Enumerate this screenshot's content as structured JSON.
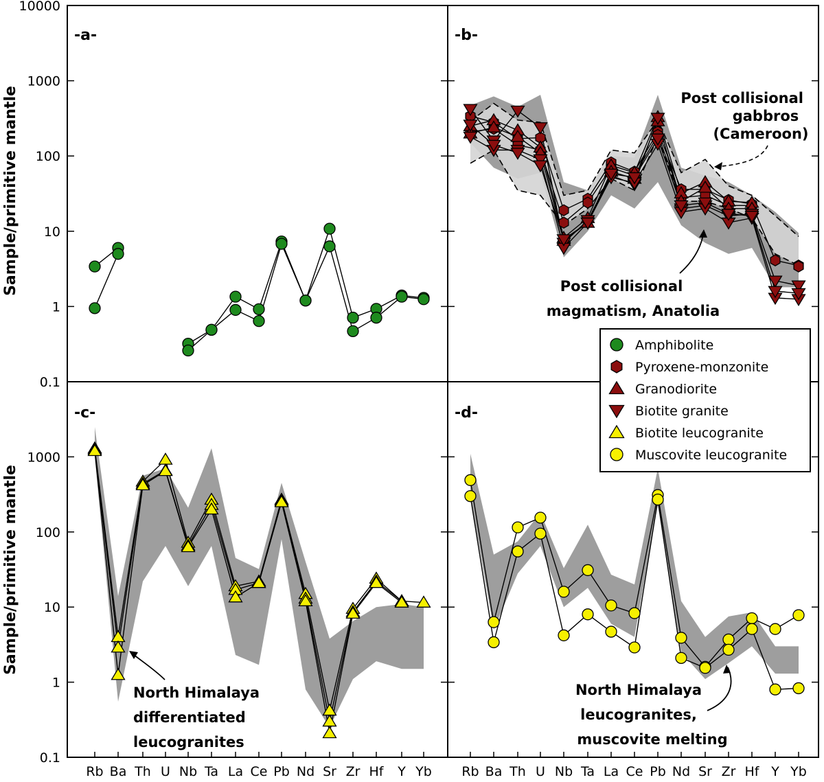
{
  "y_axis_label": "Sample/primitive mantle",
  "y_ticks": [
    "0.1",
    "1",
    "10",
    "100",
    "1000",
    "10000"
  ],
  "x_ticks_left": [
    "Rb",
    "Ba",
    "Th",
    "U",
    "Nb",
    "Ta",
    "La",
    "Ce",
    "Pb",
    "Nd",
    "Sr",
    "Zr",
    "Hf",
    "Y",
    "Yb"
  ],
  "x_ticks_right": [
    "Rb",
    "Ba",
    "Th",
    "U",
    "Nb",
    "Ta",
    "La",
    "Ce",
    "Pb",
    "Nd",
    "Sr",
    "Zr",
    "Hf",
    "Y",
    "Yb"
  ],
  "panels": {
    "a": {
      "label": "-a-"
    },
    "b": {
      "label": "-b-"
    },
    "c": {
      "label": "-c-"
    },
    "d": {
      "label": "-d-"
    }
  },
  "annotations": {
    "b_gabbros": [
      "Post collisional",
      "gabbros",
      "(Cameroon)"
    ],
    "b_anatolia": [
      "Post collisional",
      "magmatism, Anatolia"
    ],
    "c_himalaya": [
      "North Himalaya",
      "differentiated",
      "leucogranites"
    ],
    "d_himalaya": [
      "North Himalaya",
      "leucogranites,",
      "muscovite melting"
    ]
  },
  "legend": [
    {
      "label": "Amphibolite",
      "marker": "circle",
      "color": "#1e8a1e"
    },
    {
      "label": "Pyroxene-monzonite",
      "marker": "hexagon",
      "color": "#8b0e0e"
    },
    {
      "label": "Granodiorite",
      "marker": "triangle-up",
      "color": "#8b0e0e"
    },
    {
      "label": "Biotite granite",
      "marker": "triangle-down",
      "color": "#8b0e0e"
    },
    {
      "label": "Biotite leucogranite",
      "marker": "triangle-up",
      "color": "#f6f000"
    },
    {
      "label": "Muscovite leucogranite",
      "marker": "circle",
      "color": "#f6f000"
    }
  ],
  "chart_data": [
    {
      "type": "line",
      "panel": "a",
      "title": "-a-",
      "ylabel": "Sample/primitive mantle",
      "yscale": "log",
      "ylim": [
        0.1,
        10000
      ],
      "categories": [
        "Rb",
        "Ba",
        "Th",
        "U",
        "Nb",
        "Ta",
        "La",
        "Ce",
        "Pb",
        "Nd",
        "Sr",
        "Zr",
        "Hf",
        "Y",
        "Yb"
      ],
      "series": [
        {
          "name": "Amphibolite",
          "values": [
            3.4,
            6.0,
            null,
            null,
            0.32,
            0.49,
            1.35,
            0.92,
            7.3,
            1.2,
            10.8,
            0.71,
            0.93,
            1.4,
            1.3
          ]
        },
        {
          "name": "Amphibolite",
          "values": [
            0.95,
            5.0,
            null,
            null,
            0.26,
            0.49,
            0.9,
            0.64,
            6.8,
            1.2,
            6.3,
            0.47,
            0.71,
            1.35,
            1.25
          ]
        }
      ],
      "fill": []
    },
    {
      "type": "line",
      "panel": "b",
      "title": "-b-",
      "yscale": "log",
      "ylim": [
        0.1,
        10000
      ],
      "categories": [
        "Rb",
        "Ba",
        "Th",
        "U",
        "Nb",
        "Ta",
        "La",
        "Ce",
        "Pb",
        "Nd",
        "Sr",
        "Zr",
        "Hf",
        "Y",
        "Yb"
      ],
      "series": [
        {
          "name": "Pyroxene-monzonite",
          "values": [
            340,
            280,
            170,
            175,
            19,
            27,
            82,
            62,
            210,
            36,
            36,
            26,
            23,
            4.1,
            3.5
          ]
        },
        {
          "name": "Pyroxene-monzonite",
          "values": [
            210,
            230,
            140,
            120,
            13,
            24,
            70,
            55,
            190,
            28,
            30,
            22,
            22,
            null,
            3.4
          ]
        },
        {
          "name": "Granodiorite",
          "values": [
            250,
            300,
            220,
            130,
            8.2,
            15,
            75,
            60,
            330,
            32,
            45,
            25,
            24,
            null,
            null
          ]
        },
        {
          "name": "Granodiorite",
          "values": [
            200,
            240,
            180,
            110,
            7.5,
            13,
            62,
            50,
            290,
            25,
            38,
            20,
            20,
            null,
            null
          ]
        },
        {
          "name": "Biotite granite",
          "values": [
            420,
            160,
            400,
            240,
            7.0,
            14,
            55,
            42,
            320,
            20,
            22,
            16,
            17,
            2.2,
            1.9
          ]
        },
        {
          "name": "Biotite granite",
          "values": [
            180,
            120,
            120,
            90,
            6.0,
            13,
            52,
            44,
            145,
            18,
            20,
            13,
            15,
            1.3,
            1.25
          ]
        },
        {
          "name": "Biotite granite",
          "values": [
            260,
            140,
            110,
            75,
            7.8,
            13,
            58,
            52,
            170,
            22,
            24,
            17,
            16,
            1.6,
            1.5
          ]
        }
      ],
      "fill_ranges": [
        {
          "name": "Post collisional magmatism, Anatolia",
          "lower": [
            150,
            70,
            50,
            60,
            4.5,
            10,
            30,
            20,
            45,
            12,
            7,
            5,
            6,
            1.8,
            1.8
          ],
          "upper": [
            470,
            620,
            450,
            650,
            45,
            35,
            100,
            95,
            650,
            70,
            55,
            45,
            30,
            18,
            9.5
          ]
        },
        {
          "name": "Post collisional gabbros (Cameroon)",
          "lower": [
            80,
            120,
            35,
            30,
            12,
            20,
            50,
            35,
            180,
            25,
            25,
            20,
            15,
            5,
            3.5
          ],
          "upper": [
            290,
            500,
            300,
            280,
            30,
            35,
            120,
            110,
            300,
            60,
            90,
            40,
            30,
            16,
            8.5
          ]
        }
      ]
    },
    {
      "type": "line",
      "panel": "c",
      "title": "-c-",
      "ylabel": "Sample/primitive mantle",
      "yscale": "log",
      "ylim": [
        0.1,
        10000
      ],
      "categories": [
        "Rb",
        "Ba",
        "Th",
        "U",
        "Nb",
        "Ta",
        "La",
        "Ce",
        "Pb",
        "Nd",
        "Sr",
        "Zr",
        "Hf",
        "Y",
        "Yb"
      ],
      "series": [
        {
          "name": "Biotite leucogranite",
          "values": [
            1300,
            4.0,
            470,
            920,
            72,
            270,
            19,
            22,
            270,
            15,
            0.42,
            9.5,
            24,
            12,
            11.5
          ]
        },
        {
          "name": "Biotite leucogranite",
          "values": [
            1250,
            2.9,
            440,
            660,
            66,
            230,
            17,
            21,
            260,
            13,
            0.3,
            8.6,
            22,
            12,
            null
          ]
        },
        {
          "name": "Biotite leucogranite",
          "values": [
            1200,
            1.25,
            420,
            650,
            63,
            200,
            13.5,
            21,
            250,
            12,
            0.21,
            8.2,
            21,
            11.5,
            null
          ]
        }
      ],
      "fill_ranges": [
        {
          "name": "North Himalaya differentiated leucogranites",
          "lower": [
            1000,
            0.55,
            22,
            65,
            19,
            65,
            2.3,
            1.7,
            80,
            0.8,
            0.25,
            1.1,
            1.9,
            1.5,
            1.5
          ],
          "upper": [
            2500,
            14,
            560,
            700,
            210,
            1300,
            45,
            32,
            450,
            40,
            3.8,
            6.5,
            10,
            11,
            10
          ]
        }
      ]
    },
    {
      "type": "line",
      "panel": "d",
      "title": "-d-",
      "yscale": "log",
      "ylim": [
        0.1,
        10000
      ],
      "categories": [
        "Rb",
        "Ba",
        "Th",
        "U",
        "Nb",
        "Ta",
        "La",
        "Ce",
        "Pb",
        "Nd",
        "Sr",
        "Zr",
        "Hf",
        "Y",
        "Yb"
      ],
      "series": [
        {
          "name": "Muscovite leucogranite",
          "values": [
            490,
            6.3,
            115,
            155,
            16,
            31,
            10.5,
            8.3,
            310,
            3.9,
            1.6,
            3.7,
            7.1,
            5.1,
            7.8
          ]
        },
        {
          "name": "Muscovite leucogranite",
          "values": [
            300,
            3.4,
            55,
            95,
            4.2,
            8.0,
            4.7,
            2.9,
            270,
            2.1,
            1.55,
            2.7,
            5.1,
            0.8,
            0.83
          ]
        }
      ],
      "fill_ranges": [
        {
          "name": "North Himalaya leucogranites, muscovite melting",
          "lower": [
            300,
            5,
            28,
            65,
            10,
            18,
            6,
            4,
            230,
            2.5,
            1.1,
            1.8,
            3,
            1.3,
            1.3
          ],
          "upper": [
            1100,
            50,
            75,
            180,
            33,
            125,
            27,
            20,
            700,
            12,
            4,
            7.5,
            8.5,
            3,
            3
          ]
        }
      ]
    }
  ]
}
